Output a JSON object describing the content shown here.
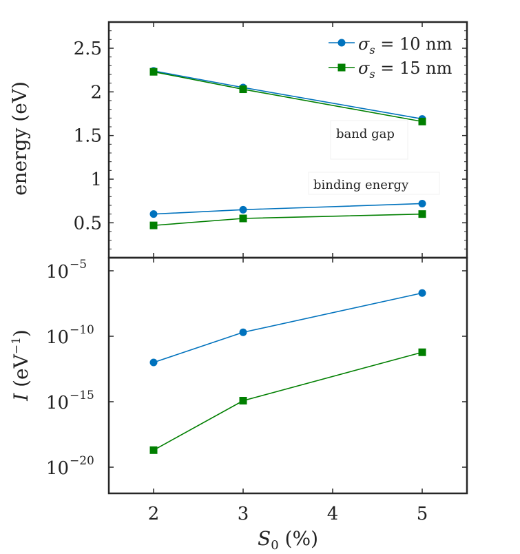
{
  "chart_data": {
    "type": "line",
    "x": [
      2,
      3,
      5
    ],
    "x_ticks": [
      "2",
      "3",
      "4",
      "5"
    ],
    "xlim": [
      1.5,
      5.5
    ],
    "xlabel": {
      "main": "S",
      "sub": "0",
      "rest": " (%)"
    },
    "legend": {
      "position": "top-right",
      "entries": [
        {
          "symbol": "σ",
          "sub": "s",
          "text": " = 10 nm"
        },
        {
          "symbol": "σ",
          "sub": "s",
          "text": " = 15 nm"
        }
      ]
    },
    "colors": {
      "series1": "#0072BD",
      "series2": "#007F00",
      "axis": "#262626"
    },
    "panels": [
      {
        "ylabel": "energy (eV)",
        "ylim": [
          0.1,
          2.8
        ],
        "yscale": "linear",
        "y_ticks": [
          0.5,
          1,
          1.5,
          2,
          2.5
        ],
        "y_tick_labels": [
          "0.5",
          "1",
          "1.5",
          "2",
          "2.5"
        ],
        "annotations": [
          "band gap",
          "binding energy"
        ],
        "series": [
          {
            "group": "band gap",
            "style": "series1",
            "marker": "circle",
            "values": [
              2.24,
              2.05,
              1.69
            ]
          },
          {
            "group": "band gap",
            "style": "series2",
            "marker": "square",
            "values": [
              2.23,
              2.03,
              1.66
            ]
          },
          {
            "group": "binding energy",
            "style": "series1",
            "marker": "circle",
            "values": [
              0.6,
              0.65,
              0.72
            ]
          },
          {
            "group": "binding energy",
            "style": "series2",
            "marker": "square",
            "values": [
              0.47,
              0.55,
              0.6
            ]
          }
        ]
      },
      {
        "ylabel": {
          "main": "I",
          "rest": " (eV",
          "sup": "−1",
          "end": ")"
        },
        "ylim": [
          -22,
          -4
        ],
        "yscale": "log10",
        "y_ticks": [
          -20,
          -15,
          -10,
          -5
        ],
        "y_tick_labels": [
          {
            "base": "10",
            "exp": "−20"
          },
          {
            "base": "10",
            "exp": "−15"
          },
          {
            "base": "10",
            "exp": "−10"
          },
          {
            "base": "10",
            "exp": "−5"
          }
        ],
        "series": [
          {
            "style": "series1",
            "marker": "circle",
            "values": [
              1e-12,
              2e-10,
              2e-07
            ]
          },
          {
            "style": "series2",
            "marker": "square",
            "values": [
              2e-19,
              1.2e-15,
              6e-12
            ]
          }
        ]
      }
    ]
  }
}
